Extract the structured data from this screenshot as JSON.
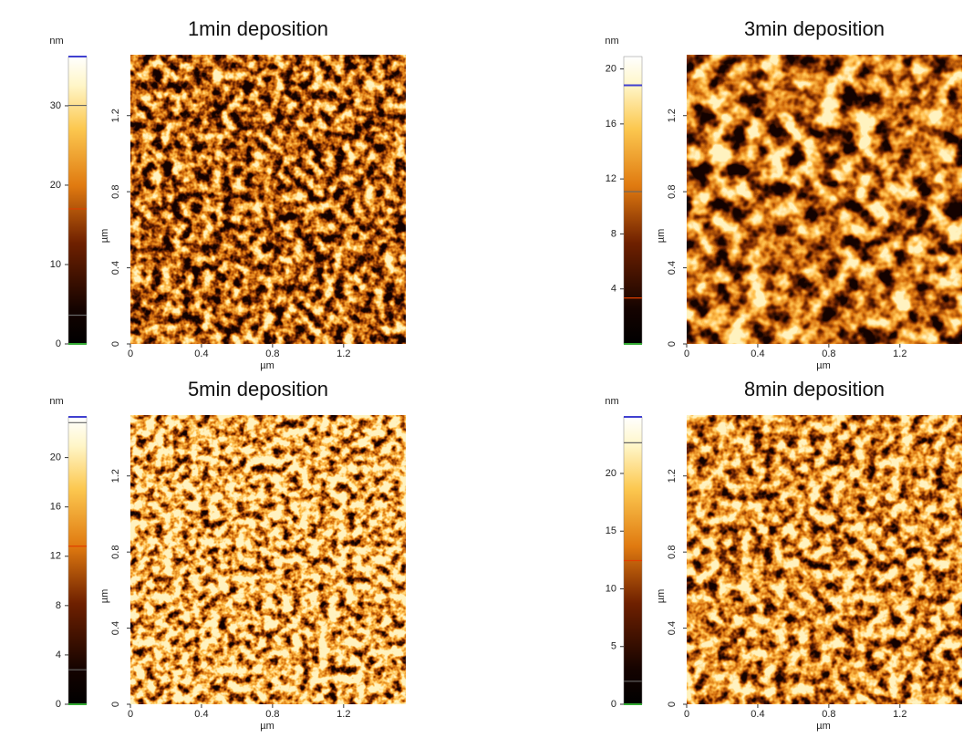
{
  "panels": [
    {
      "title": "1min deposition",
      "colorbar": {
        "unit": "nm",
        "lim": [
          0,
          36.2
        ],
        "ticks": [
          0,
          10,
          20,
          30
        ]
      },
      "x": {
        "label": "µm",
        "lim": [
          0,
          1.55
        ],
        "ticks": [
          0,
          0.4,
          0.8,
          1.2
        ]
      },
      "y": {
        "label": "µm",
        "lim": [
          0,
          1.52
        ],
        "ticks": [
          0,
          0.4,
          0.8,
          1.2
        ]
      }
    },
    {
      "title": "3min deposition",
      "colorbar": {
        "unit": "nm",
        "lim": [
          0,
          20.9
        ],
        "ticks": [
          4,
          8,
          12,
          16,
          20
        ]
      },
      "x": {
        "label": "µm",
        "lim": [
          0,
          1.55
        ],
        "ticks": [
          0,
          0.4,
          0.8,
          1.2
        ]
      },
      "y": {
        "label": "µm",
        "lim": [
          0,
          1.52
        ],
        "ticks": [
          0,
          0.4,
          0.8,
          1.2
        ]
      }
    },
    {
      "title": "5min deposition",
      "colorbar": {
        "unit": "nm",
        "lim": [
          0,
          23.3
        ],
        "ticks": [
          0,
          4,
          8,
          12,
          16,
          20
        ]
      },
      "x": {
        "label": "µm",
        "lim": [
          0,
          1.55
        ],
        "ticks": [
          0,
          0.4,
          0.8,
          1.2
        ]
      },
      "y": {
        "label": "µm",
        "lim": [
          0,
          1.52
        ],
        "ticks": [
          0,
          0.4,
          0.8,
          1.2
        ]
      }
    },
    {
      "title": "8min deposition",
      "colorbar": {
        "unit": "nm",
        "lim": [
          0,
          24.9
        ],
        "ticks": [
          0,
          5,
          10,
          15,
          20
        ]
      },
      "x": {
        "label": "µm",
        "lim": [
          0,
          1.55
        ],
        "ticks": [
          0,
          0.4,
          0.8,
          1.2
        ]
      },
      "y": {
        "label": "µm",
        "lim": [
          0,
          1.52
        ],
        "ticks": [
          0,
          0.4,
          0.8,
          1.2
        ]
      }
    }
  ]
}
